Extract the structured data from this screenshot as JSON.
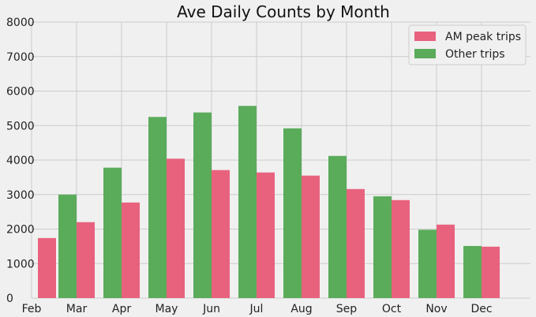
{
  "chart_data": {
    "type": "bar",
    "title": "Ave Daily Counts by Month",
    "xlabel": "",
    "ylabel": "",
    "categories": [
      "Feb",
      "Mar",
      "Apr",
      "May",
      "Jun",
      "Jul",
      "Aug",
      "Sep",
      "Oct",
      "Nov",
      "Dec"
    ],
    "ylim": [
      0,
      8000
    ],
    "yticks": [
      0,
      1000,
      2000,
      3000,
      4000,
      5000,
      6000,
      7000,
      8000
    ],
    "grid": true,
    "legend_position": "top-right",
    "series": [
      {
        "name": "AM peak trips",
        "color": "#e8627e",
        "values": [
          1740,
          2200,
          2770,
          4040,
          3710,
          3640,
          3550,
          3160,
          2840,
          2130,
          1490
        ]
      },
      {
        "name": "Other trips",
        "color": "#5aab5a",
        "values": [
          null,
          3000,
          3780,
          5250,
          5380,
          5570,
          4920,
          4120,
          2950,
          1980,
          1510
        ]
      }
    ]
  }
}
